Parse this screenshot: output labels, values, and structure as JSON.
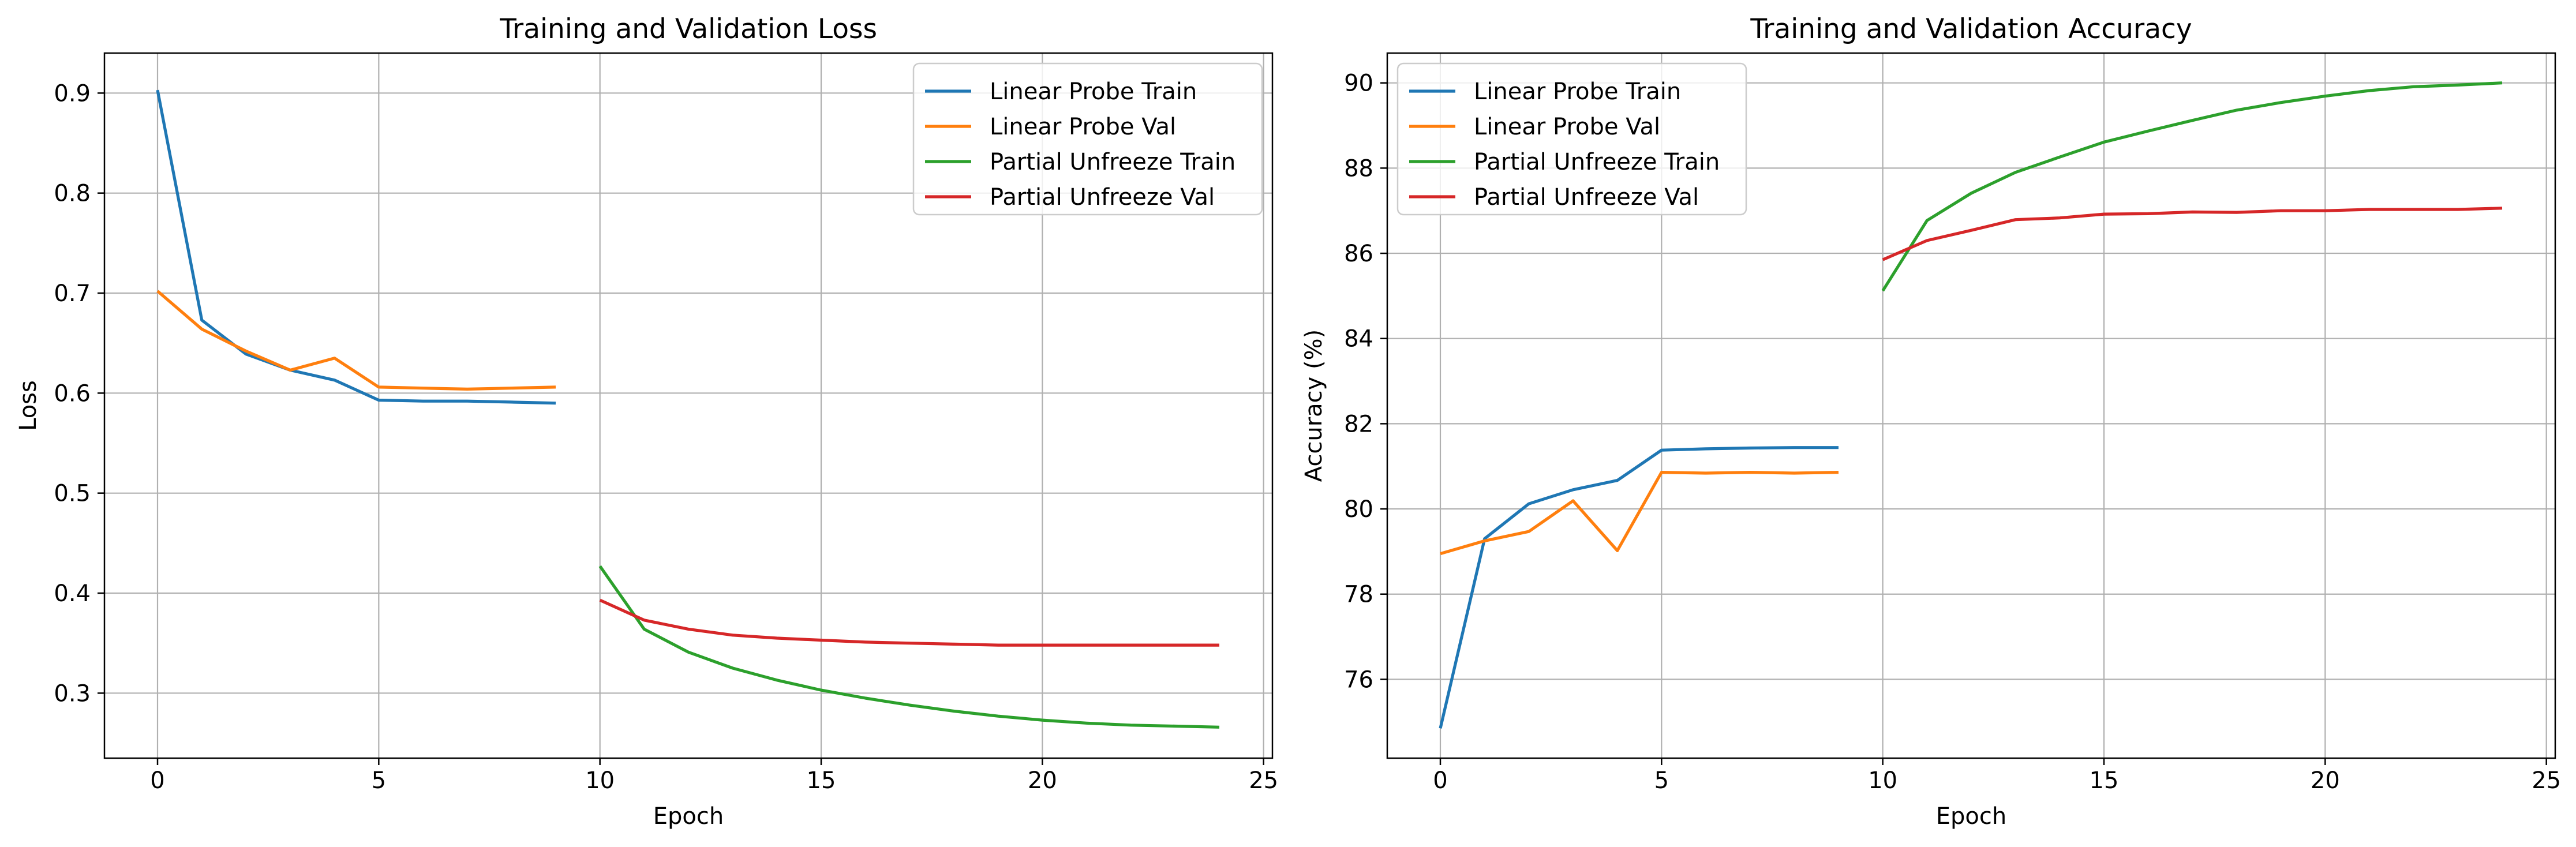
{
  "chart_data": [
    {
      "type": "line",
      "title": "Training and Validation Loss",
      "xlabel": "Epoch",
      "ylabel": "Loss",
      "xlim": [
        -1.2,
        25.2
      ],
      "ylim": [
        0.235,
        0.94
      ],
      "xticks": [
        0,
        5,
        10,
        15,
        20,
        25
      ],
      "yticks": [
        0.3,
        0.4,
        0.5,
        0.6,
        0.7,
        0.8,
        0.9
      ],
      "ytick_format": "fixed1",
      "grid": true,
      "legend_position": "upper-right",
      "series": [
        {
          "name": "Linear Probe Train",
          "color": "#1f77b4",
          "x": [
            0,
            1,
            2,
            3,
            4,
            5,
            6,
            7,
            8,
            9
          ],
          "y": [
            0.903,
            0.673,
            0.639,
            0.623,
            0.613,
            0.593,
            0.592,
            0.592,
            0.591,
            0.59
          ]
        },
        {
          "name": "Linear Probe Val",
          "color": "#ff7f0e",
          "x": [
            0,
            1,
            2,
            3,
            4,
            5,
            6,
            7,
            8,
            9
          ],
          "y": [
            0.702,
            0.664,
            0.642,
            0.623,
            0.635,
            0.606,
            0.605,
            0.604,
            0.605,
            0.606
          ]
        },
        {
          "name": "Partial Unfreeze Train",
          "color": "#2ca02c",
          "x": [
            10,
            11,
            12,
            13,
            14,
            15,
            16,
            17,
            18,
            19,
            20,
            21,
            22,
            23,
            24
          ],
          "y": [
            0.427,
            0.364,
            0.341,
            0.325,
            0.313,
            0.303,
            0.295,
            0.288,
            0.282,
            0.277,
            0.273,
            0.27,
            0.268,
            0.267,
            0.266
          ]
        },
        {
          "name": "Partial Unfreeze Val",
          "color": "#d62728",
          "x": [
            10,
            11,
            12,
            13,
            14,
            15,
            16,
            17,
            18,
            19,
            20,
            21,
            22,
            23,
            24
          ],
          "y": [
            0.393,
            0.373,
            0.364,
            0.358,
            0.355,
            0.353,
            0.351,
            0.35,
            0.349,
            0.348,
            0.348,
            0.348,
            0.348,
            0.348,
            0.348
          ]
        }
      ]
    },
    {
      "type": "line",
      "title": "Training and Validation Accuracy",
      "xlabel": "Epoch",
      "ylabel": "Accuracy (%)",
      "xlim": [
        -1.2,
        25.2
      ],
      "ylim": [
        74.15,
        90.7
      ],
      "xticks": [
        0,
        5,
        10,
        15,
        20,
        25
      ],
      "yticks": [
        76,
        78,
        80,
        82,
        84,
        86,
        88,
        90
      ],
      "ytick_format": "int",
      "grid": true,
      "legend_position": "upper-left",
      "series": [
        {
          "name": "Linear Probe Train",
          "color": "#1f77b4",
          "x": [
            0,
            1,
            2,
            3,
            4,
            5,
            6,
            7,
            8,
            9
          ],
          "y": [
            74.85,
            79.3,
            80.12,
            80.45,
            80.67,
            81.38,
            81.41,
            81.43,
            81.44,
            81.44
          ]
        },
        {
          "name": "Linear Probe Val",
          "color": "#ff7f0e",
          "x": [
            0,
            1,
            2,
            3,
            4,
            5,
            6,
            7,
            8,
            9
          ],
          "y": [
            78.95,
            79.25,
            79.47,
            80.19,
            79.02,
            80.86,
            80.84,
            80.86,
            80.84,
            80.86
          ]
        },
        {
          "name": "Partial Unfreeze Train",
          "color": "#2ca02c",
          "x": [
            10,
            11,
            12,
            13,
            14,
            15,
            16,
            17,
            18,
            19,
            20,
            21,
            22,
            23,
            24
          ],
          "y": [
            85.12,
            86.77,
            87.41,
            87.9,
            88.26,
            88.61,
            88.87,
            89.12,
            89.36,
            89.54,
            89.69,
            89.82,
            89.91,
            89.95,
            90.0
          ]
        },
        {
          "name": "Partial Unfreeze Val",
          "color": "#d62728",
          "x": [
            10,
            11,
            12,
            13,
            14,
            15,
            16,
            17,
            18,
            19,
            20,
            21,
            22,
            23,
            24
          ],
          "y": [
            85.85,
            86.3,
            86.54,
            86.79,
            86.83,
            86.92,
            86.93,
            86.97,
            86.96,
            87.0,
            87.0,
            87.03,
            87.03,
            87.03,
            87.06
          ]
        }
      ]
    }
  ]
}
